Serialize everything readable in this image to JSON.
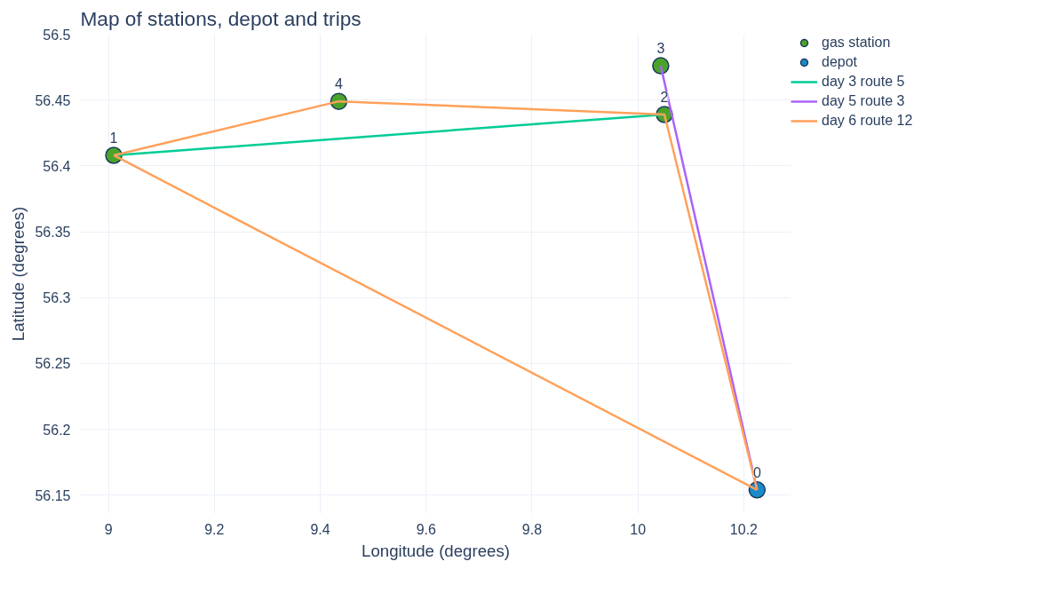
{
  "chart_data": {
    "type": "scatter",
    "title": "Map of stations, depot and trips",
    "xlabel": "Longitude (degrees)",
    "ylabel": "Latitude (degrees)",
    "xlim": [
      8.947,
      10.289
    ],
    "ylim": [
      56.136,
      56.5
    ],
    "xticks": [
      9,
      9.2,
      9.4,
      9.6,
      9.8,
      10,
      10.2
    ],
    "yticks": [
      56.15,
      56.2,
      56.25,
      56.3,
      56.35,
      56.4,
      56.45,
      56.5
    ],
    "grid": true,
    "legend": "right",
    "series": [
      {
        "name": "gas station",
        "marker": "circle",
        "color": "#4ba32a",
        "x": [
          9.01,
          10.05,
          10.043,
          9.435
        ],
        "values": [
          56.408,
          56.439,
          56.476,
          56.449
        ]
      },
      {
        "name": "depot",
        "marker": "circle",
        "color": "#1a8ac8",
        "x": [
          10.225
        ],
        "values": [
          56.154
        ]
      },
      {
        "name": "day 3 route 5",
        "type": "line",
        "color": "#00cc96",
        "x": [
          9.01,
          10.05
        ],
        "values": [
          56.408,
          56.439
        ]
      },
      {
        "name": "day 5 route 3",
        "type": "line",
        "color": "#ab63fa",
        "x": [
          10.043,
          10.225
        ],
        "values": [
          56.476,
          56.154
        ]
      },
      {
        "name": "day 6 route 12",
        "type": "line",
        "color": "#ffa15a",
        "x": [
          9.01,
          9.435,
          10.05,
          10.225
        ],
        "values": [
          56.408,
          56.449,
          56.439,
          56.154
        ]
      },
      {
        "type": "line",
        "color": "#ffa15a",
        "x": [
          9.01,
          10.225
        ],
        "values": [
          56.408,
          56.154
        ]
      }
    ],
    "annotations": [
      {
        "text": "0",
        "x": 10.225,
        "y": 56.154
      },
      {
        "text": "1",
        "x": 9.01,
        "y": 56.408
      },
      {
        "text": "2",
        "x": 10.05,
        "y": 56.439
      },
      {
        "text": "3",
        "x": 10.043,
        "y": 56.476
      },
      {
        "text": "4",
        "x": 9.435,
        "y": 56.449
      }
    ]
  }
}
